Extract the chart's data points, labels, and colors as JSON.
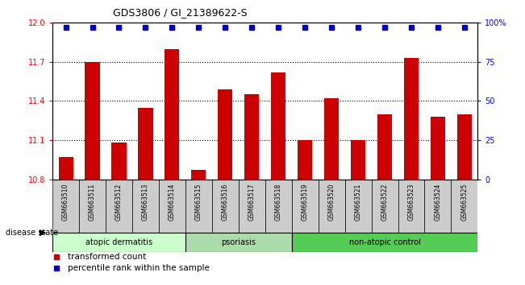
{
  "title": "GDS3806 / GI_21389622-S",
  "samples": [
    "GSM663510",
    "GSM663511",
    "GSM663512",
    "GSM663513",
    "GSM663514",
    "GSM663515",
    "GSM663516",
    "GSM663517",
    "GSM663518",
    "GSM663519",
    "GSM663520",
    "GSM663521",
    "GSM663522",
    "GSM663523",
    "GSM663524",
    "GSM663525"
  ],
  "transformed_counts": [
    10.97,
    11.7,
    11.08,
    11.35,
    11.8,
    10.87,
    11.49,
    11.45,
    11.62,
    11.1,
    11.42,
    11.1,
    11.3,
    11.73,
    11.28,
    11.3
  ],
  "percentile_ranks": [
    100,
    100,
    100,
    100,
    100,
    100,
    100,
    100,
    100,
    100,
    100,
    100,
    100,
    100,
    100,
    100
  ],
  "group_configs": [
    {
      "label": "atopic dermatitis",
      "start": 0,
      "end": 4,
      "color": "#ccffcc"
    },
    {
      "label": "psoriasis",
      "start": 5,
      "end": 8,
      "color": "#aaddaa"
    },
    {
      "label": "non-atopic control",
      "start": 9,
      "end": 15,
      "color": "#55cc55"
    }
  ],
  "ylim_left": [
    10.8,
    12.0
  ],
  "yticks_left": [
    10.8,
    11.1,
    11.4,
    11.7,
    12.0
  ],
  "ylim_right": [
    0,
    100
  ],
  "yticks_right": [
    0,
    25,
    50,
    75,
    100
  ],
  "bar_color": "#cc0000",
  "dot_color": "#0000cc",
  "bar_width": 0.55,
  "background_color": "#ffffff",
  "panel_bg": "#cccccc",
  "dot_size": 4,
  "grid_vals": [
    11.1,
    11.4,
    11.7
  ]
}
